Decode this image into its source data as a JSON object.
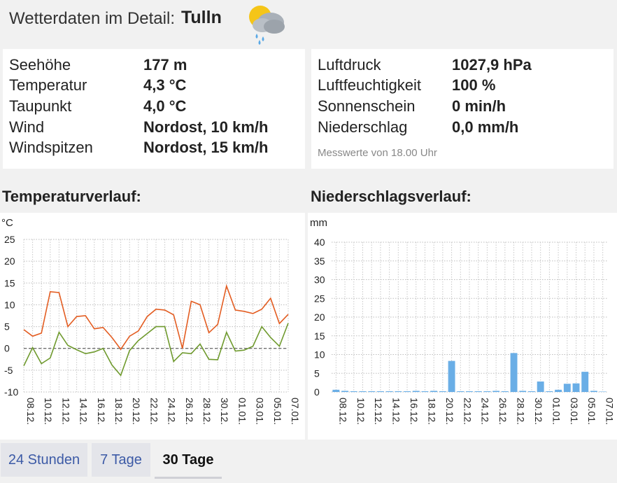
{
  "header": {
    "label": "Wetterdaten im Detail:",
    "city": "Tulln",
    "icon": "partly-cloudy-rain-icon"
  },
  "stats_left": [
    {
      "label": "Seehöhe",
      "value": "177 m"
    },
    {
      "label": "Temperatur",
      "value": "4,3 °C"
    },
    {
      "label": "Taupunkt",
      "value": "4,0 °C"
    },
    {
      "label": "Wind",
      "value": "Nordost, 10 km/h"
    },
    {
      "label": "Windspitzen",
      "value": "Nordost, 15 km/h"
    }
  ],
  "stats_right": [
    {
      "label": "Luftdruck",
      "value": "1027,9 hPa"
    },
    {
      "label": "Luftfeuchtigkeit",
      "value": "100 %"
    },
    {
      "label": "Sonnenschein",
      "value": "0 min/h"
    },
    {
      "label": "Niederschlag",
      "value": "0,0 mm/h"
    }
  ],
  "measurement_note": "Messwerte von 18.00 Uhr",
  "temp_section": {
    "title": "Temperaturverlauf:"
  },
  "precip_section": {
    "title": "Niederschlagsverlauf:"
  },
  "tabs": [
    {
      "label": "24 Stunden",
      "active": false
    },
    {
      "label": "7 Tage",
      "active": false
    },
    {
      "label": "30 Tage",
      "active": true
    }
  ],
  "colors": {
    "max_line": "#e35d22",
    "min_line": "#6f9a2e",
    "bars": "#6aaee6"
  },
  "chart_data": [
    {
      "type": "line",
      "ylabel": "°C",
      "ylim": [
        -10,
        25
      ],
      "yticks": [
        25,
        20,
        15,
        10,
        5,
        0,
        -5,
        -10
      ],
      "x_tick_labels": [
        "08.12.",
        "10.12.",
        "12.12.",
        "14.12.",
        "16.12.",
        "18.12.",
        "20.12.",
        "22.12.",
        "24.12.",
        "26.12.",
        "28.12.",
        "30.12.",
        "01.01.",
        "03.01.",
        "05.01.",
        "07.01."
      ],
      "grid": true,
      "zero_line": "dashed",
      "series": [
        {
          "values": [
            4.3,
            2.8,
            3.5,
            13.0,
            12.8,
            5.0,
            7.3,
            7.5,
            4.5,
            4.8,
            2.5,
            -0.2,
            2.8,
            4.0,
            7.3,
            9.0,
            8.8,
            7.7,
            0.0,
            10.8,
            10.0,
            3.6,
            5.5,
            14.3,
            8.8,
            8.5,
            8.0,
            9.0,
            11.5,
            5.7,
            7.8
          ]
        },
        {
          "values": [
            -4.0,
            0.2,
            -3.5,
            -2.2,
            3.7,
            0.7,
            -0.3,
            -1.2,
            -0.8,
            0.0,
            -3.8,
            -6.2,
            -0.5,
            1.8,
            3.4,
            5.0,
            5.0,
            -3.0,
            -1.0,
            -1.2,
            1.0,
            -2.5,
            -2.6,
            3.7,
            -0.6,
            -0.4,
            0.5,
            5.0,
            2.5,
            0.5,
            5.8
          ]
        }
      ]
    },
    {
      "type": "bar",
      "ylabel": "mm",
      "ylim": [
        0,
        40
      ],
      "yticks": [
        40,
        35,
        30,
        25,
        20,
        15,
        10,
        5,
        0
      ],
      "x_tick_labels": [
        "08.12.",
        "10.12.",
        "12.12.",
        "14.12.",
        "16.12.",
        "18.12.",
        "20.12.",
        "22.12.",
        "24.12.",
        "26.12.",
        "28.12.",
        "30.12.",
        "01.01.",
        "03.01.",
        "05.01.",
        "07.01."
      ],
      "grid": true,
      "values": [
        0.6,
        0.3,
        0.2,
        0.2,
        0.2,
        0.2,
        0.2,
        0.2,
        0.2,
        0.3,
        0.2,
        0.3,
        0.2,
        8.3,
        0.2,
        0.2,
        0.2,
        0.2,
        0.3,
        0.2,
        10.4,
        0.3,
        0.2,
        2.8,
        0.2,
        0.6,
        2.2,
        2.3,
        5.4,
        0.3,
        0.1
      ]
    }
  ]
}
